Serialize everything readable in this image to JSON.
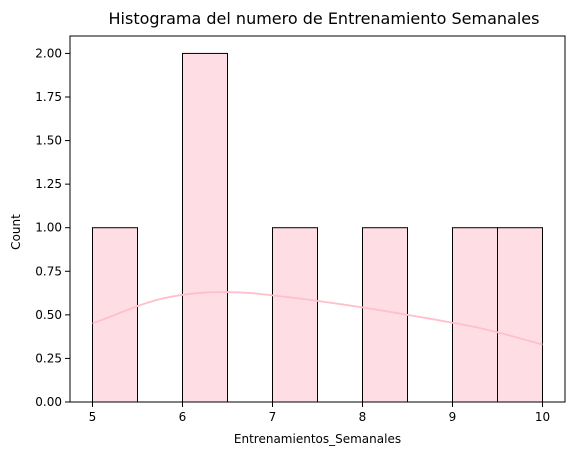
{
  "chart_data": {
    "type": "bar",
    "title": "Histograma del numero de Entrenamiento Semanales",
    "xlabel": "Entrenamientos_Semanales",
    "ylabel": "Count",
    "xlim": [
      4.75,
      10.25
    ],
    "ylim": [
      0,
      2.1
    ],
    "x_ticks": [
      5,
      6,
      7,
      8,
      9,
      10
    ],
    "x_tick_labels": [
      "5",
      "6",
      "7",
      "8",
      "9",
      "10"
    ],
    "y_ticks": [
      0,
      0.25,
      0.5,
      0.75,
      1.0,
      1.25,
      1.5,
      1.75,
      2.0
    ],
    "y_tick_labels": [
      "0.00",
      "0.25",
      "0.50",
      "0.75",
      "1.00",
      "1.25",
      "1.50",
      "1.75",
      "2.00"
    ],
    "bins": [
      {
        "x0": 5.0,
        "x1": 5.5,
        "count": 1
      },
      {
        "x0": 5.5,
        "x1": 6.0,
        "count": 0
      },
      {
        "x0": 6.0,
        "x1": 6.5,
        "count": 2
      },
      {
        "x0": 6.5,
        "x1": 7.0,
        "count": 0
      },
      {
        "x0": 7.0,
        "x1": 7.5,
        "count": 1
      },
      {
        "x0": 7.5,
        "x1": 8.0,
        "count": 0
      },
      {
        "x0": 8.0,
        "x1": 8.5,
        "count": 1
      },
      {
        "x0": 8.5,
        "x1": 9.0,
        "count": 0
      },
      {
        "x0": 9.0,
        "x1": 9.5,
        "count": 1
      },
      {
        "x0": 9.5,
        "x1": 10.0,
        "count": 1
      }
    ],
    "kde": {
      "x": [
        5.0,
        5.25,
        5.5,
        5.75,
        6.0,
        6.25,
        6.5,
        6.75,
        7.0,
        7.25,
        7.5,
        7.75,
        8.0,
        8.25,
        8.5,
        8.75,
        9.0,
        9.25,
        9.5,
        9.75,
        10.0
      ],
      "y": [
        0.45,
        0.5,
        0.55,
        0.59,
        0.615,
        0.628,
        0.63,
        0.625,
        0.612,
        0.597,
        0.58,
        0.562,
        0.543,
        0.522,
        0.5,
        0.478,
        0.455,
        0.43,
        0.4,
        0.365,
        0.33
      ]
    },
    "grid": false,
    "legend": false,
    "colors": {
      "bar_fill": "#ffdde4",
      "bar_edge": "#000000",
      "kde_line": "#ffc0cb",
      "axis": "#000000"
    }
  }
}
